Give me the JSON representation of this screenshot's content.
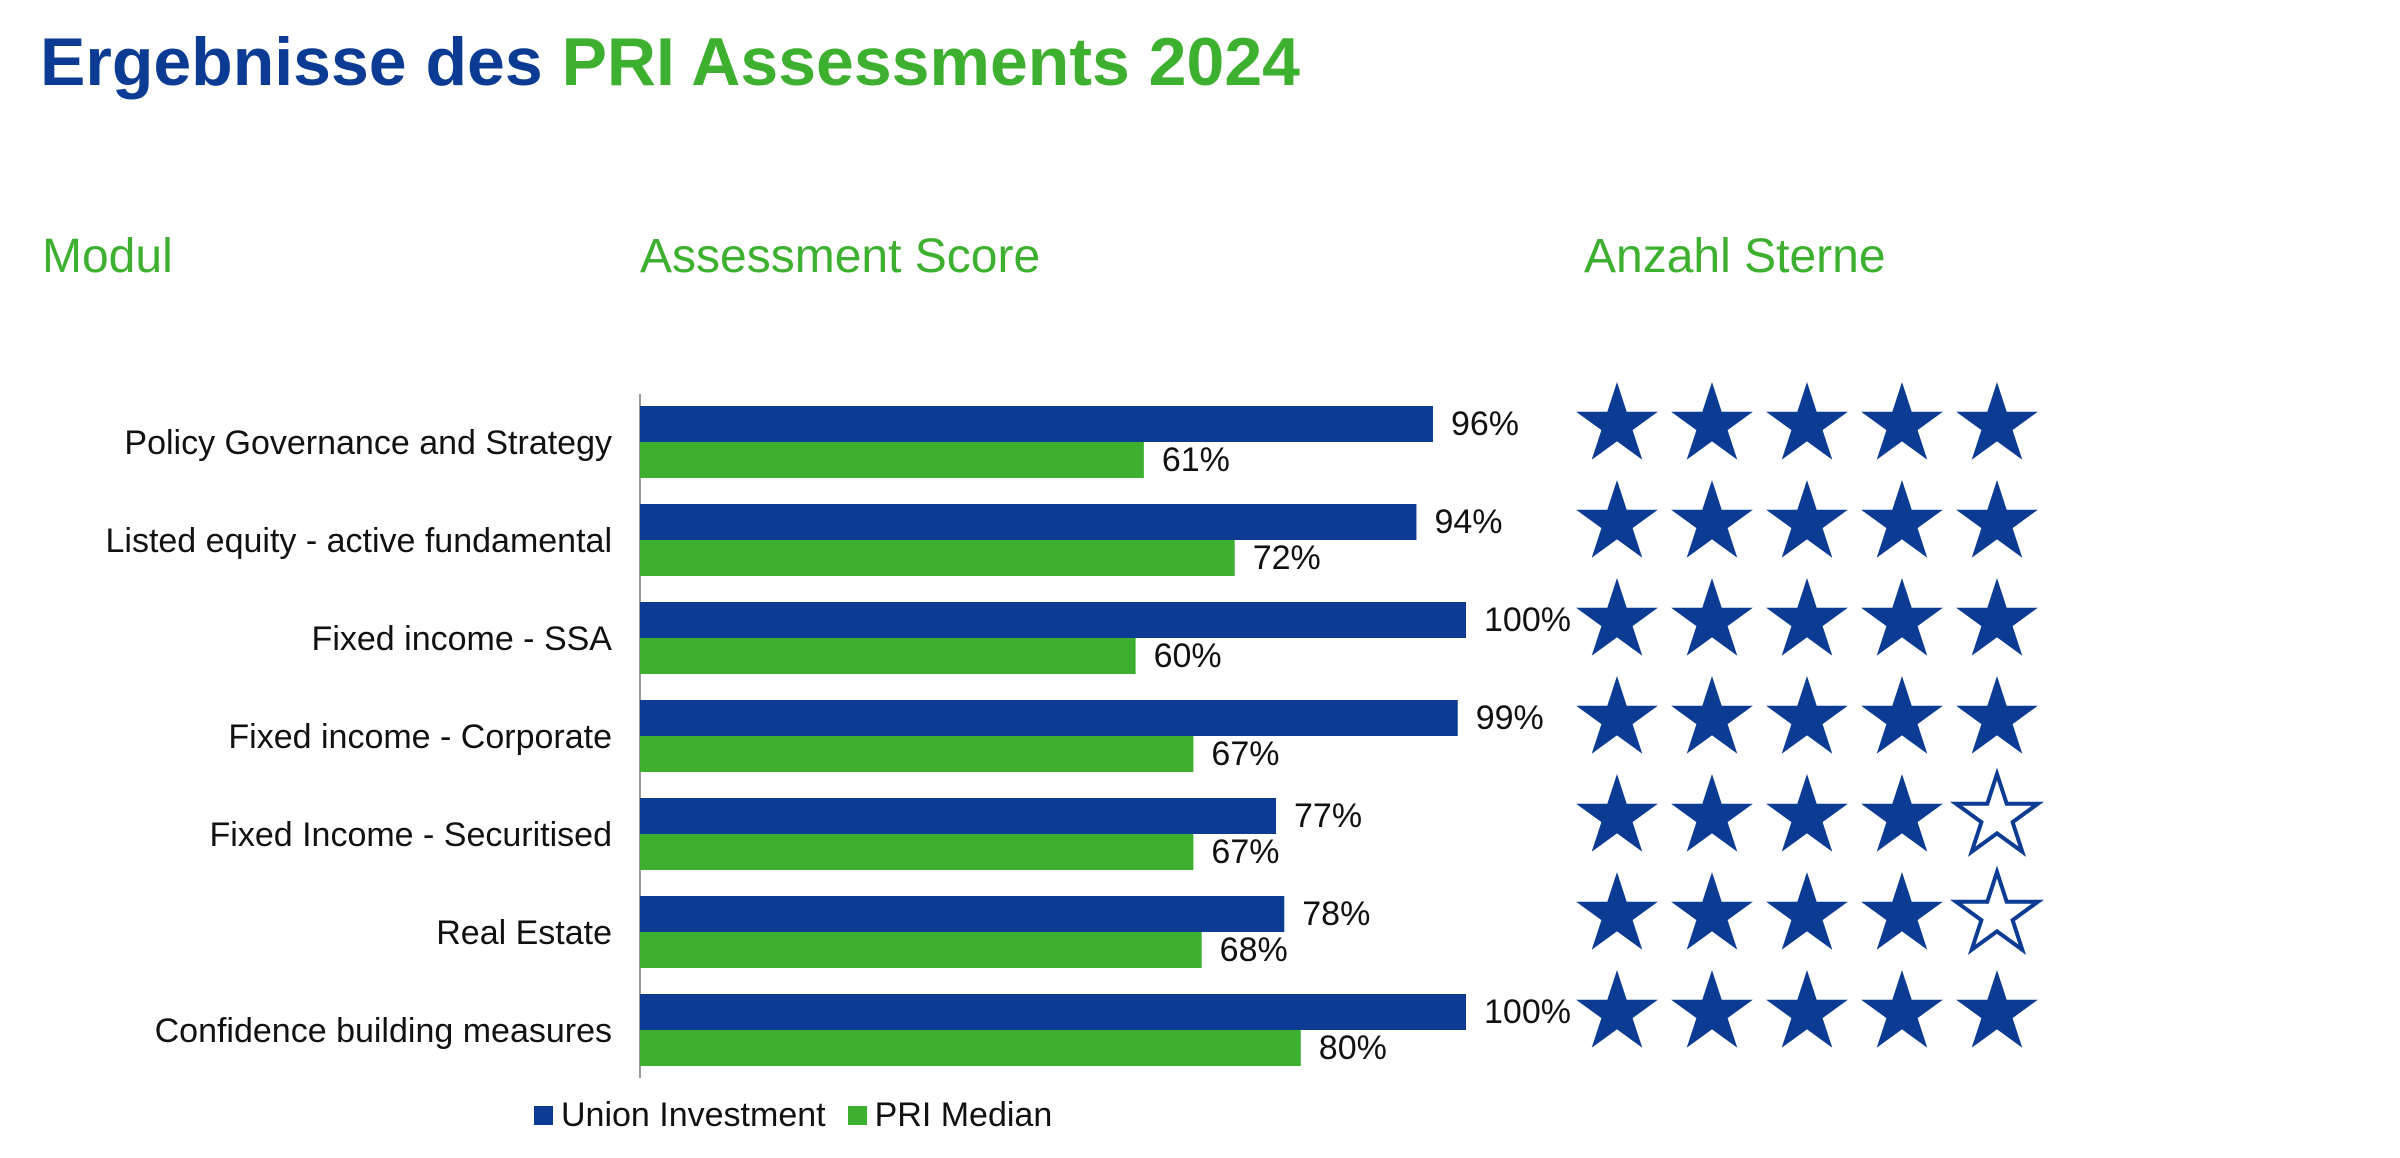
{
  "title": {
    "part1": "Ergebnisse des",
    "part2": "PRI Assessments 2024"
  },
  "columns": {
    "module": "Modul",
    "score": "Assessment Score",
    "stars": "Anzahl Sterne"
  },
  "colors": {
    "union": "#0b3b92",
    "median": "#3eb02f",
    "star": "#0b3b92"
  },
  "chart_data": {
    "type": "bar",
    "orientation": "horizontal",
    "categories": [
      "Policy Governance and Strategy",
      "Listed equity - active fundamental",
      "Fixed income - SSA",
      "Fixed income - Corporate",
      "Fixed Income - Securitised",
      "Real Estate",
      "Confidence building measures"
    ],
    "series": [
      {
        "name": "Union Investment",
        "values": [
          96,
          94,
          100,
          99,
          77,
          78,
          100
        ],
        "labels": [
          "96%",
          "94%",
          "100%",
          "99%",
          "77%",
          "78%",
          "100%"
        ]
      },
      {
        "name": "PRI Median",
        "values": [
          61,
          72,
          60,
          67,
          67,
          68,
          80
        ],
        "labels": [
          "61%",
          "72%",
          "60%",
          "67%",
          "67%",
          "68%",
          "80%"
        ]
      }
    ],
    "xlim": [
      0,
      100
    ],
    "stars": {
      "max": 5,
      "values": [
        5,
        5,
        5,
        5,
        4,
        4,
        5
      ]
    },
    "legend_position": "bottom-left"
  }
}
